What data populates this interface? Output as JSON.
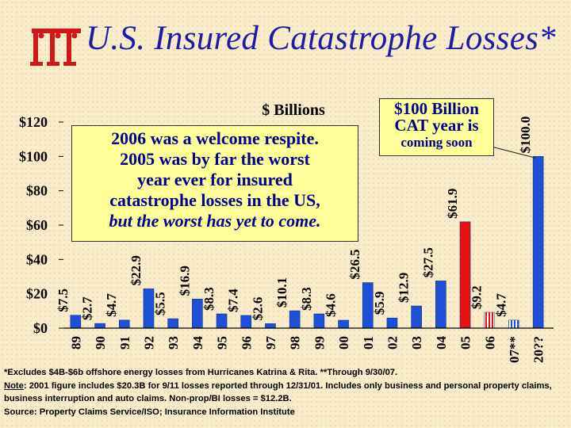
{
  "title": "U.S. Insured Catastrophe Losses*",
  "logo_icon": "iii-logo-icon",
  "colors": {
    "bar": "#1f4fd6",
    "highlight_bar": "#e81010",
    "title": "#1c1ca8",
    "callout_bg": "#ffff99",
    "callout_text": "#00008b"
  },
  "chart_data": {
    "type": "bar",
    "ylabel": "$ Billions",
    "ylim": [
      0,
      120
    ],
    "y_ticks": [
      "$0",
      "$20",
      "$40",
      "$60",
      "$80",
      "$100",
      "$120"
    ],
    "y_tick_values": [
      0,
      20,
      40,
      60,
      80,
      100,
      120
    ],
    "grid": false,
    "categories": [
      "89",
      "90",
      "91",
      "92",
      "93",
      "94",
      "95",
      "96",
      "97",
      "98",
      "99",
      "00",
      "01",
      "02",
      "03",
      "04",
      "05",
      "06",
      "07**",
      "20??"
    ],
    "values": [
      7.5,
      2.7,
      4.7,
      22.9,
      5.5,
      16.9,
      8.3,
      7.4,
      2.6,
      10.1,
      8.3,
      4.6,
      26.5,
      5.9,
      12.9,
      27.5,
      61.9,
      9.2,
      4.7,
      100.0
    ],
    "data_labels": [
      "$7.5",
      "$2.7",
      "$4.7",
      "$22.9",
      "$5.5",
      "$16.9",
      "$8.3",
      "$7.4",
      "$2.6",
      "$10.1",
      "$8.3",
      "$4.6",
      "$26.5",
      "$5.9",
      "$12.9",
      "$27.5",
      "$61.9",
      "$9.2",
      "$4.7",
      "$100.0"
    ],
    "highlight": [
      false,
      false,
      false,
      false,
      false,
      false,
      false,
      false,
      false,
      false,
      false,
      false,
      false,
      false,
      false,
      false,
      true,
      false,
      false,
      false
    ],
    "patterned": [
      false,
      false,
      false,
      false,
      false,
      false,
      false,
      false,
      false,
      false,
      false,
      false,
      false,
      false,
      false,
      false,
      false,
      true,
      true,
      false
    ],
    "annotations": {
      "left_box": {
        "line1": "2006 was a welcome respite.",
        "line2": "2005 was by far the worst",
        "line3": "year ever for insured",
        "line4": "catastrophe losses in the US,",
        "line5": "but the worst has yet to come."
      },
      "right_box": {
        "line1": "$100 Billion",
        "line2": "CAT year is",
        "line3": "coming soon"
      }
    }
  },
  "footnotes": {
    "line1": "*Excludes $4B-$6b offshore energy losses from Hurricanes Katrina & Rita.  **Through 9/30/07.",
    "note_label": "Note",
    "note_text": ": 2001 figure includes $20.3B for 9/11 losses reported through 12/31/01.  Includes only business and personal property claims, business interruption and auto claims.  Non-prop/BI losses = $12.2B.",
    "source": "Source:  Property Claims Service/ISO; Insurance Information Institute"
  }
}
